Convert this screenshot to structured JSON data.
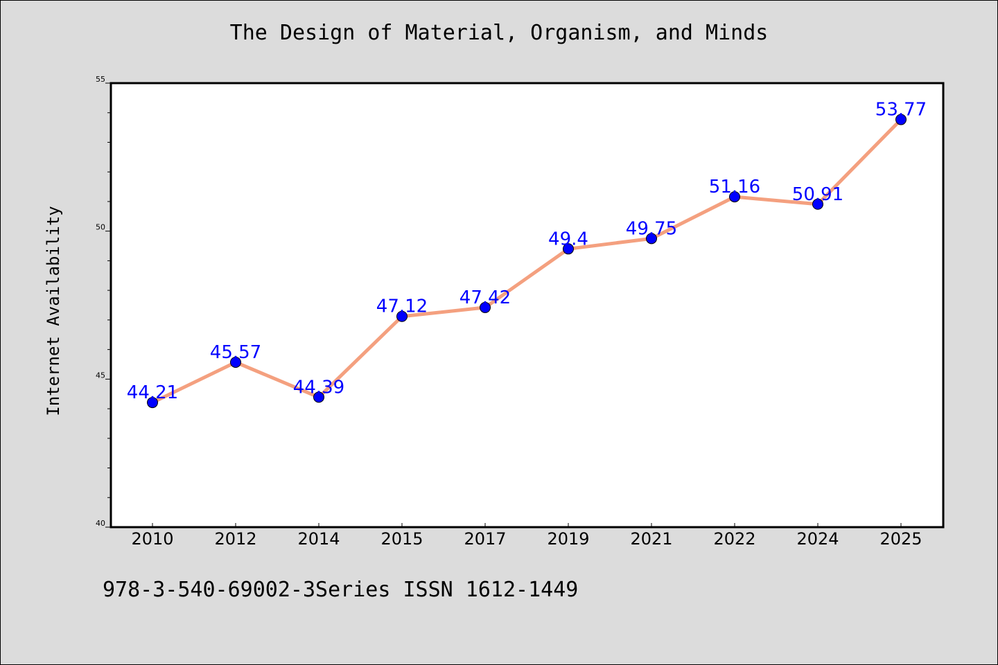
{
  "chart_data": {
    "type": "line",
    "title": "The Design of Material, Organism, and Minds",
    "xlabel": "",
    "ylabel": "Internet Availability",
    "categories": [
      "2010",
      "2012",
      "2014",
      "2015",
      "2017",
      "2019",
      "2021",
      "2022",
      "2024",
      "2025"
    ],
    "values": [
      44.21,
      45.57,
      44.39,
      47.12,
      47.42,
      49.4,
      49.75,
      51.16,
      50.91,
      53.77
    ],
    "data_labels": [
      "44.21",
      "45.57",
      "44.39",
      "47.12",
      "47.42",
      "49.4",
      "49.75",
      "51.16",
      "50.91",
      "53.77"
    ],
    "ylim": [
      40,
      55
    ],
    "y_major_ticks": [
      40,
      45,
      50,
      55
    ],
    "y_minor_step": 1,
    "grid": false,
    "legend": "none",
    "line_color": "#f4a07f",
    "marker_color": "#0000ff",
    "label_color": "#0000ff",
    "plot_background": "#ffffff",
    "page_background": "#dcdcdc"
  },
  "footer": {
    "text": "978-3-540-69002-3Series ISSN 1612-1449"
  }
}
